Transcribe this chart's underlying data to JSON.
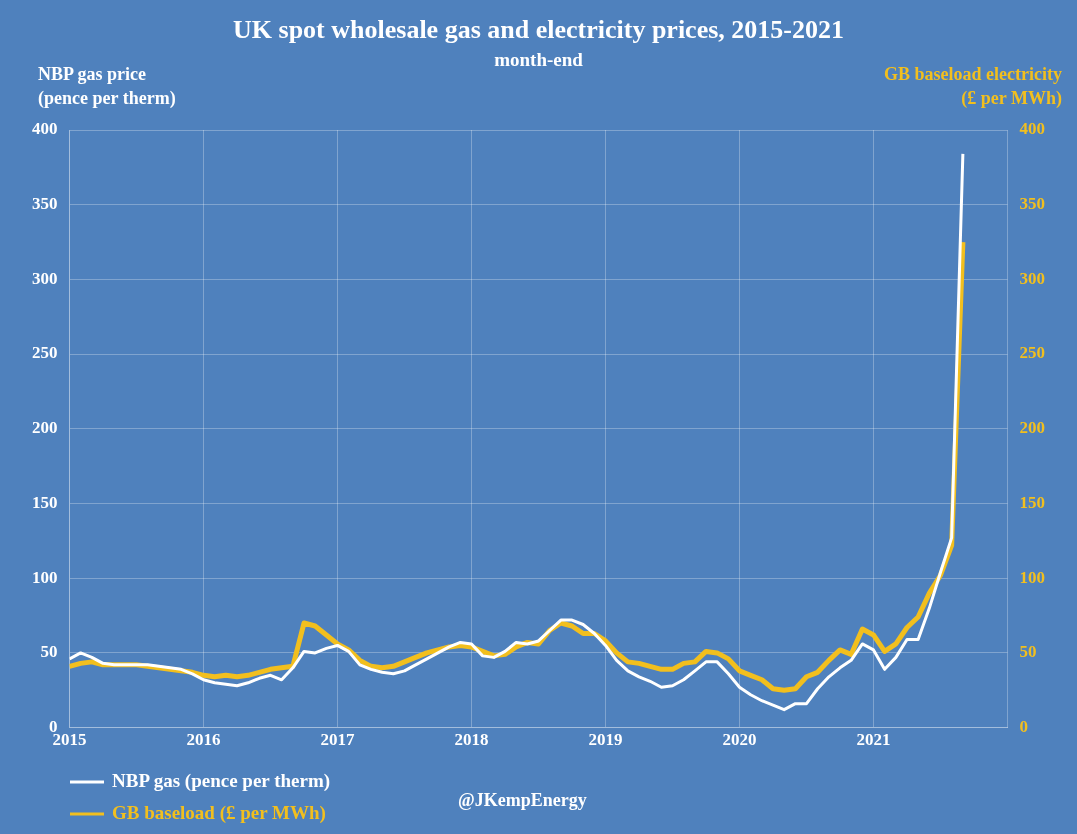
{
  "chart_data": {
    "type": "line",
    "title": "UK spot wholesale gas and electricity prices, 2015-2021",
    "subtitle": "month-end",
    "ylabel": "NBP gas price\n(pence per therm)",
    "y2label": "GB baseload electricity\n(£ per MWh)",
    "x": [
      2015,
      2015.083,
      2015.167,
      2015.25,
      2015.333,
      2015.417,
      2015.5,
      2015.583,
      2015.667,
      2015.75,
      2015.833,
      2015.917,
      2016,
      2016.083,
      2016.167,
      2016.25,
      2016.333,
      2016.417,
      2016.5,
      2016.583,
      2016.667,
      2016.75,
      2016.833,
      2016.917,
      2017,
      2017.083,
      2017.167,
      2017.25,
      2017.333,
      2017.417,
      2017.5,
      2017.583,
      2017.667,
      2017.75,
      2017.833,
      2017.917,
      2018,
      2018.083,
      2018.167,
      2018.25,
      2018.333,
      2018.417,
      2018.5,
      2018.583,
      2018.667,
      2018.75,
      2018.833,
      2018.917,
      2019,
      2019.083,
      2019.167,
      2019.25,
      2019.333,
      2019.417,
      2019.5,
      2019.583,
      2019.667,
      2019.75,
      2019.833,
      2019.917,
      2020,
      2020.083,
      2020.167,
      2020.25,
      2020.333,
      2020.417,
      2020.5,
      2020.583,
      2020.667,
      2020.75,
      2020.833,
      2020.917,
      2021,
      2021.083,
      2021.167,
      2021.25,
      2021.333,
      2021.417,
      2021.5,
      2021.583,
      2021.667
    ],
    "series": [
      {
        "name": "NBP gas (pence per therm)",
        "color": "#ffffff",
        "values": [
          46,
          50,
          47,
          43,
          42,
          42,
          42,
          42,
          41,
          40,
          39,
          36,
          32,
          30,
          29,
          28,
          30,
          33,
          35,
          32,
          40,
          51,
          50,
          53,
          55,
          51,
          42,
          39,
          37,
          36,
          38,
          42,
          46,
          50,
          54,
          57,
          56,
          48,
          47,
          51,
          57,
          56,
          58,
          65,
          72,
          72,
          69,
          63,
          55,
          45,
          38,
          34,
          31,
          27,
          28,
          32,
          38,
          44,
          44,
          36,
          27,
          22,
          18,
          15,
          12,
          16,
          16,
          26,
          34,
          40,
          45,
          56,
          52,
          39,
          47,
          59,
          59,
          80,
          104,
          127,
          384
        ]
      },
      {
        "name": "GB baseload (£ per MWh)",
        "color": "#f2bf1e",
        "axis": "y2",
        "values": [
          41,
          43,
          44,
          42,
          42,
          42,
          42,
          41,
          40,
          39,
          38,
          37,
          35,
          34,
          35,
          34,
          35,
          37,
          39,
          40,
          41,
          70,
          68,
          62,
          56,
          52,
          45,
          41,
          40,
          41,
          44,
          47,
          50,
          52,
          54,
          55,
          54,
          51,
          48,
          49,
          54,
          57,
          56,
          65,
          70,
          68,
          63,
          63,
          58,
          50,
          44,
          43,
          41,
          39,
          39,
          43,
          44,
          51,
          50,
          46,
          38,
          35,
          32,
          26,
          25,
          26,
          34,
          37,
          45,
          52,
          49,
          66,
          62,
          51,
          56,
          67,
          74,
          90,
          102,
          122,
          325
        ]
      }
    ],
    "xlim": [
      2015,
      2022
    ],
    "xticks": [
      2015,
      2016,
      2017,
      2018,
      2019,
      2020,
      2021
    ],
    "ylim": [
      0,
      400
    ],
    "yticks": [
      0,
      50,
      100,
      150,
      200,
      250,
      300,
      350,
      400
    ],
    "y2lim": [
      0,
      400
    ],
    "y2ticks": [
      0,
      50,
      100,
      150,
      200,
      250,
      300,
      350,
      400
    ],
    "grid": true,
    "legend": "bottom left",
    "marker": "none",
    "line_style": "solid",
    "annotations": [
      "@JKempEnergy"
    ]
  }
}
